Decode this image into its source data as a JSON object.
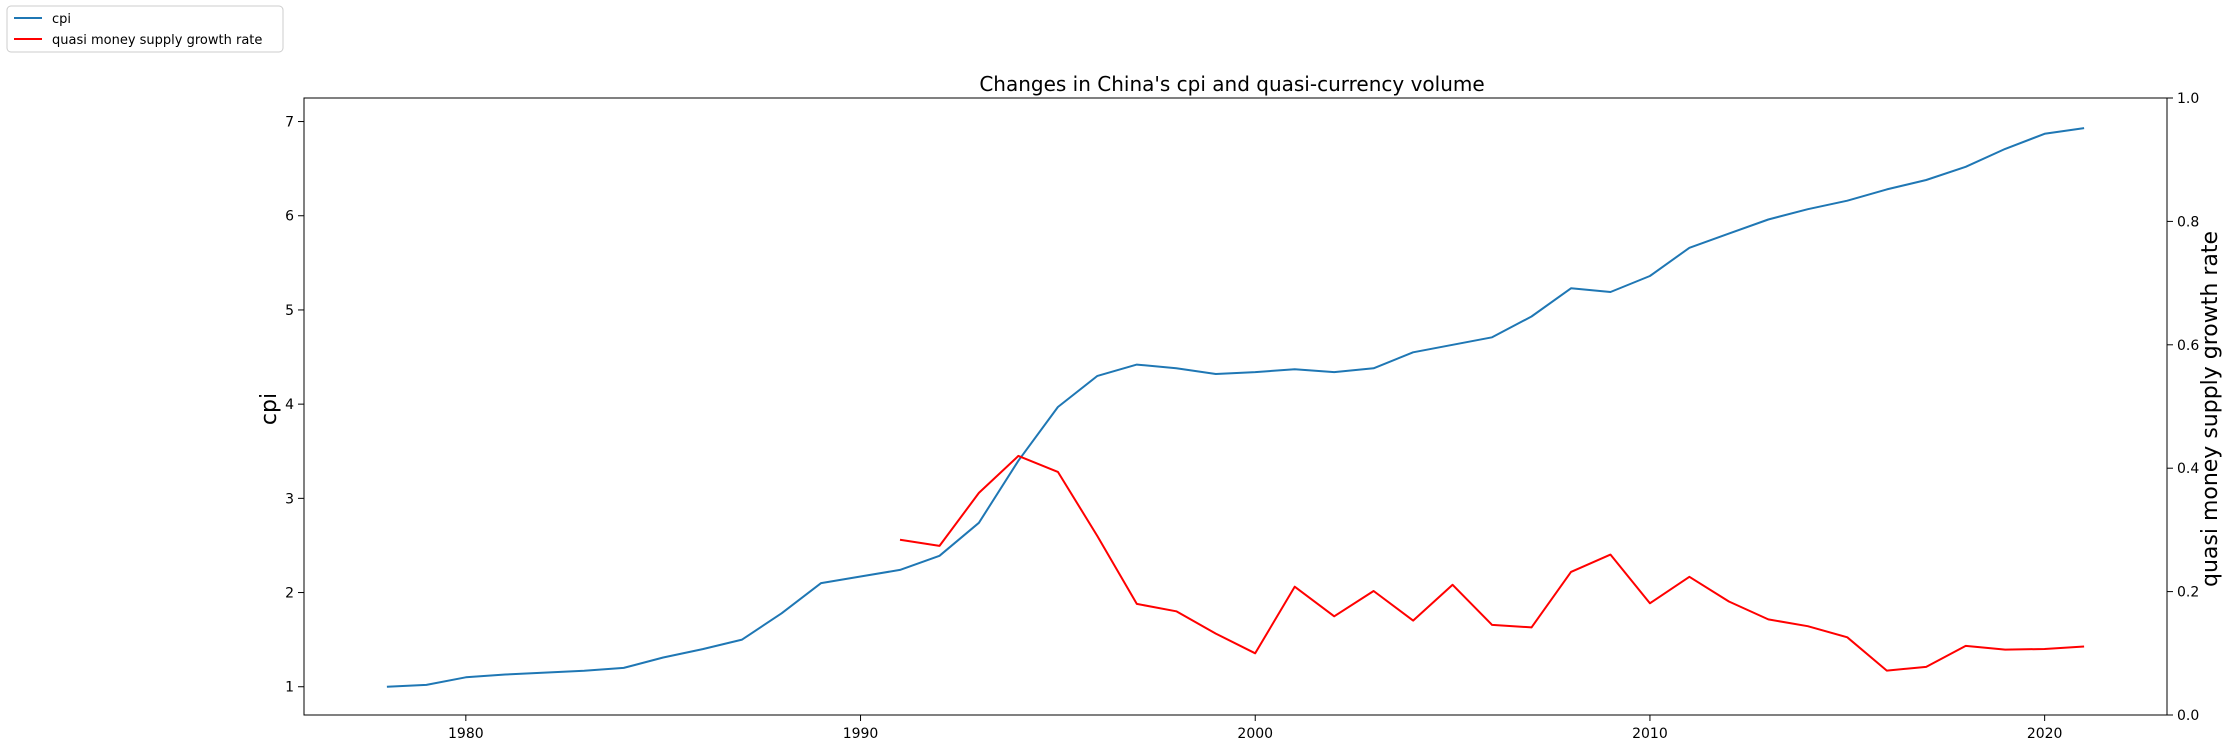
{
  "chart_data": {
    "type": "line",
    "title": "Changes in China's cpi and quasi-currency volume",
    "xlabel": "",
    "ylabel": "cpi",
    "y2label": "quasi money supply growth rate",
    "xlim": [
      1975.9,
      2023.1
    ],
    "ylim": [
      0.7,
      7.25
    ],
    "y2lim": [
      0.0,
      1.0
    ],
    "xticks": [
      1980,
      1990,
      2000,
      2010,
      2020
    ],
    "yticks": [
      1,
      2,
      3,
      4,
      5,
      6,
      7
    ],
    "y2ticks": [
      0.0,
      0.2,
      0.4,
      0.6,
      0.8,
      1.0
    ],
    "grid": false,
    "legend_position": "top-left",
    "series": [
      {
        "name": "cpi",
        "axis": "left",
        "color": "#1f77b4",
        "x": [
          1978,
          1979,
          1980,
          1981,
          1982,
          1983,
          1984,
          1985,
          1986,
          1987,
          1988,
          1989,
          1990,
          1991,
          1992,
          1993,
          1994,
          1995,
          1996,
          1997,
          1998,
          1999,
          2000,
          2001,
          2002,
          2003,
          2004,
          2005,
          2006,
          2007,
          2008,
          2009,
          2010,
          2011,
          2012,
          2013,
          2014,
          2015,
          2016,
          2017,
          2018,
          2019,
          2020,
          2021
        ],
        "values": [
          1.0,
          1.02,
          1.1,
          1.13,
          1.15,
          1.17,
          1.2,
          1.31,
          1.4,
          1.5,
          1.78,
          2.1,
          2.17,
          2.24,
          2.39,
          2.74,
          3.4,
          3.97,
          4.3,
          4.42,
          4.38,
          4.32,
          4.34,
          4.37,
          4.34,
          4.38,
          4.55,
          4.63,
          4.71,
          4.93,
          5.23,
          5.19,
          5.36,
          5.66,
          5.81,
          5.96,
          6.07,
          6.16,
          6.28,
          6.38,
          6.52,
          6.71,
          6.87,
          6.93
        ]
      },
      {
        "name": "quasi money supply growth rate",
        "axis": "right",
        "color": "#ff0000",
        "x": [
          1991,
          1992,
          1993,
          1994,
          1995,
          1996,
          1997,
          1998,
          1999,
          2000,
          2001,
          2002,
          2003,
          2004,
          2005,
          2006,
          2007,
          2008,
          2009,
          2010,
          2011,
          2012,
          2013,
          2014,
          2015,
          2016,
          2017,
          2018,
          2019,
          2020,
          2021
        ],
        "values": [
          0.284,
          0.274,
          0.36,
          0.42,
          0.394,
          0.29,
          0.18,
          0.168,
          0.132,
          0.1,
          0.208,
          0.16,
          0.201,
          0.153,
          0.211,
          0.146,
          0.142,
          0.232,
          0.26,
          0.181,
          0.224,
          0.184,
          0.155,
          0.144,
          0.126,
          0.072,
          0.078,
          0.112,
          0.106,
          0.107,
          0.111
        ]
      }
    ]
  }
}
